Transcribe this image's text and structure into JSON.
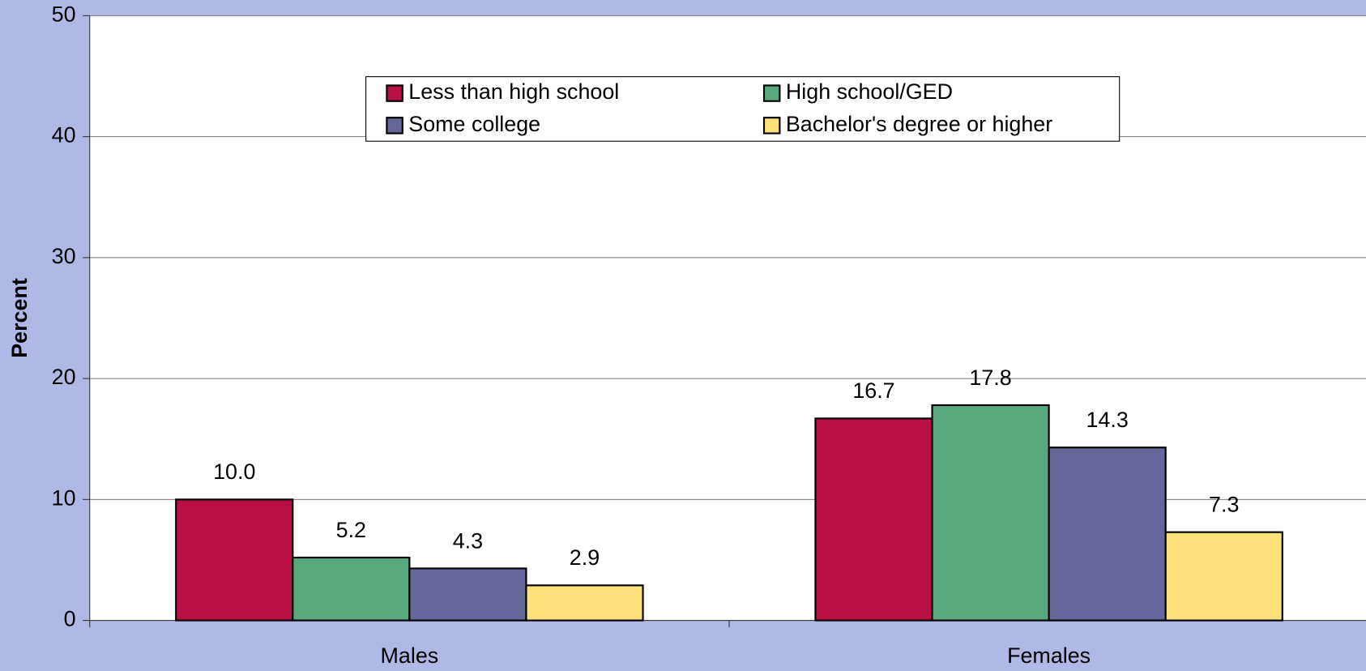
{
  "chart_data": {
    "type": "bar",
    "y_label": "Percent",
    "categories": [
      "Males",
      "Females"
    ],
    "series": [
      {
        "name": "Less than high school",
        "color": "#ba0f45",
        "values": [
          10,
          16.7
        ],
        "value_labels": [
          "10.0",
          "16.7"
        ]
      },
      {
        "name": "High school/GED",
        "color": "#58a77d",
        "values": [
          5.2,
          17.8
        ],
        "value_labels": [
          "5.2",
          "17.8"
        ]
      },
      {
        "name": "Some college",
        "color": "#656699",
        "values": [
          4.3,
          14.3
        ],
        "value_labels": [
          "4.3",
          "14.3"
        ]
      },
      {
        "name": "Bachelor's degree or higher",
        "color": "#fee17a",
        "values": [
          2.9,
          7.3
        ],
        "value_labels": [
          "2.9",
          "7.3"
        ]
      }
    ],
    "ylim": [
      0,
      50
    ],
    "yticks": [
      0,
      10,
      20,
      30,
      40,
      50
    ],
    "grid": true,
    "legend": "top"
  }
}
